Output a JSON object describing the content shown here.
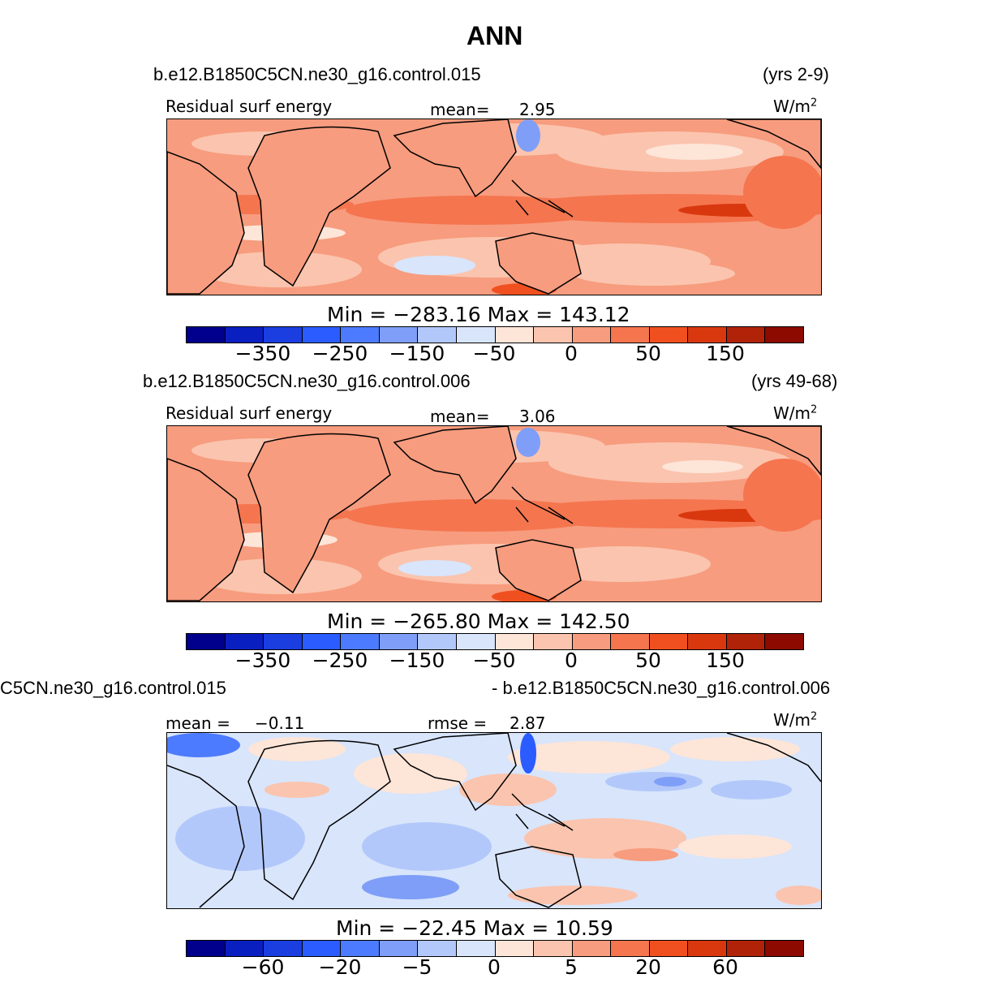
{
  "title": "ANN",
  "panels": [
    {
      "case": "b.e12.B1850C5CN.ne30_g16.control.015",
      "years": "(yrs 2-9)",
      "variable": "Residual surf energy",
      "stat_label": "mean=",
      "stat_value": "2.95",
      "units_base": "W/m",
      "units_exp": "2",
      "minmax": "Min  =  −283.16  Max  =  143.12",
      "ticks": [
        "−350",
        "−250",
        "−150",
        "−50",
        "0",
        "50",
        "150"
      ]
    },
    {
      "case": "b.e12.B1850C5CN.ne30_g16.control.006",
      "years": "(yrs 49-68)",
      "variable": "Residual surf energy",
      "stat_label": "mean=",
      "stat_value": "3.06",
      "units_base": "W/m",
      "units_exp": "2",
      "minmax": "Min  =  −265.80  Max  =  142.50",
      "ticks": [
        "−350",
        "−250",
        "−150",
        "−50",
        "0",
        "50",
        "150"
      ]
    },
    {
      "case_left": "C5CN.ne30_g16.control.015",
      "case_right": "- b.e12.B1850C5CN.ne30_g16.control.006",
      "mean_label": "mean =",
      "mean_value": "−0.11",
      "rmse_label": "rmse =",
      "rmse_value": "2.87",
      "units_base": "W/m",
      "units_exp": "2",
      "minmax": "Min  =  −22.45  Max  =   10.59",
      "ticks": [
        "−60",
        "−20",
        "−5",
        "0",
        "5",
        "20",
        "60"
      ]
    }
  ],
  "colorbar_colors": [
    "#00008c",
    "#0a1fbf",
    "#1a3ee0",
    "#2b5cff",
    "#4d7bff",
    "#7f9ef7",
    "#b3c8fa",
    "#d8e5fb",
    "#fde5d8",
    "#fbc4ae",
    "#f79c7e",
    "#f5754f",
    "#f0501f",
    "#d9380f",
    "#b02308",
    "#8c0a00"
  ]
}
